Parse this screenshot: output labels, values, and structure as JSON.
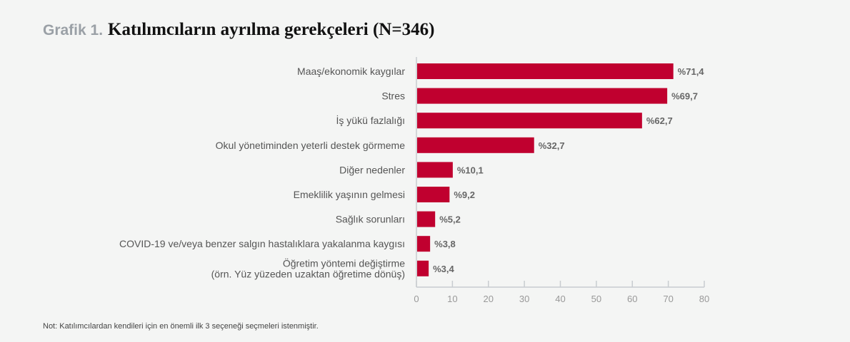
{
  "title": {
    "prefix": "Grafik 1.",
    "text": "Katılımcıların ayrılma gerekçeleri (N=346)"
  },
  "note": "Not: Katılımcılardan kendileri için en önemli ilk 3 seçeneği seçmeleri istenmiştir.",
  "chart_data": {
    "type": "bar",
    "orientation": "horizontal",
    "categories": [
      [
        "Maaş/ekonomik kaygılar"
      ],
      [
        "Stres"
      ],
      [
        "İş yükü fazlalığı"
      ],
      [
        "Okul yönetiminden yeterli destek görmeme"
      ],
      [
        "Diğer nedenler"
      ],
      [
        "Emeklilik yaşının gelmesi"
      ],
      [
        "Sağlık sorunları"
      ],
      [
        "COVID-19 ve/veya benzer salgın hastalıklara yakalanma kaygısı"
      ],
      [
        "Öğretim yöntemi değiştirme",
        "(örn. Yüz yüzeden uzaktan öğretime dönüş)"
      ]
    ],
    "values": [
      71.4,
      69.7,
      62.7,
      32.7,
      10.1,
      9.2,
      5.2,
      3.8,
      3.4
    ],
    "data_labels": [
      "%71,4",
      "%69,7",
      "%62,7",
      "%32,7",
      "%10,1",
      "%9,2",
      "%5,2",
      "%3,8",
      "%3,4"
    ],
    "xlim": [
      0,
      80
    ],
    "xticks": [
      "0",
      "10",
      "20",
      "30",
      "40",
      "50",
      "60",
      "70",
      "80"
    ],
    "bar_color": "#c0002f",
    "grid": false
  }
}
